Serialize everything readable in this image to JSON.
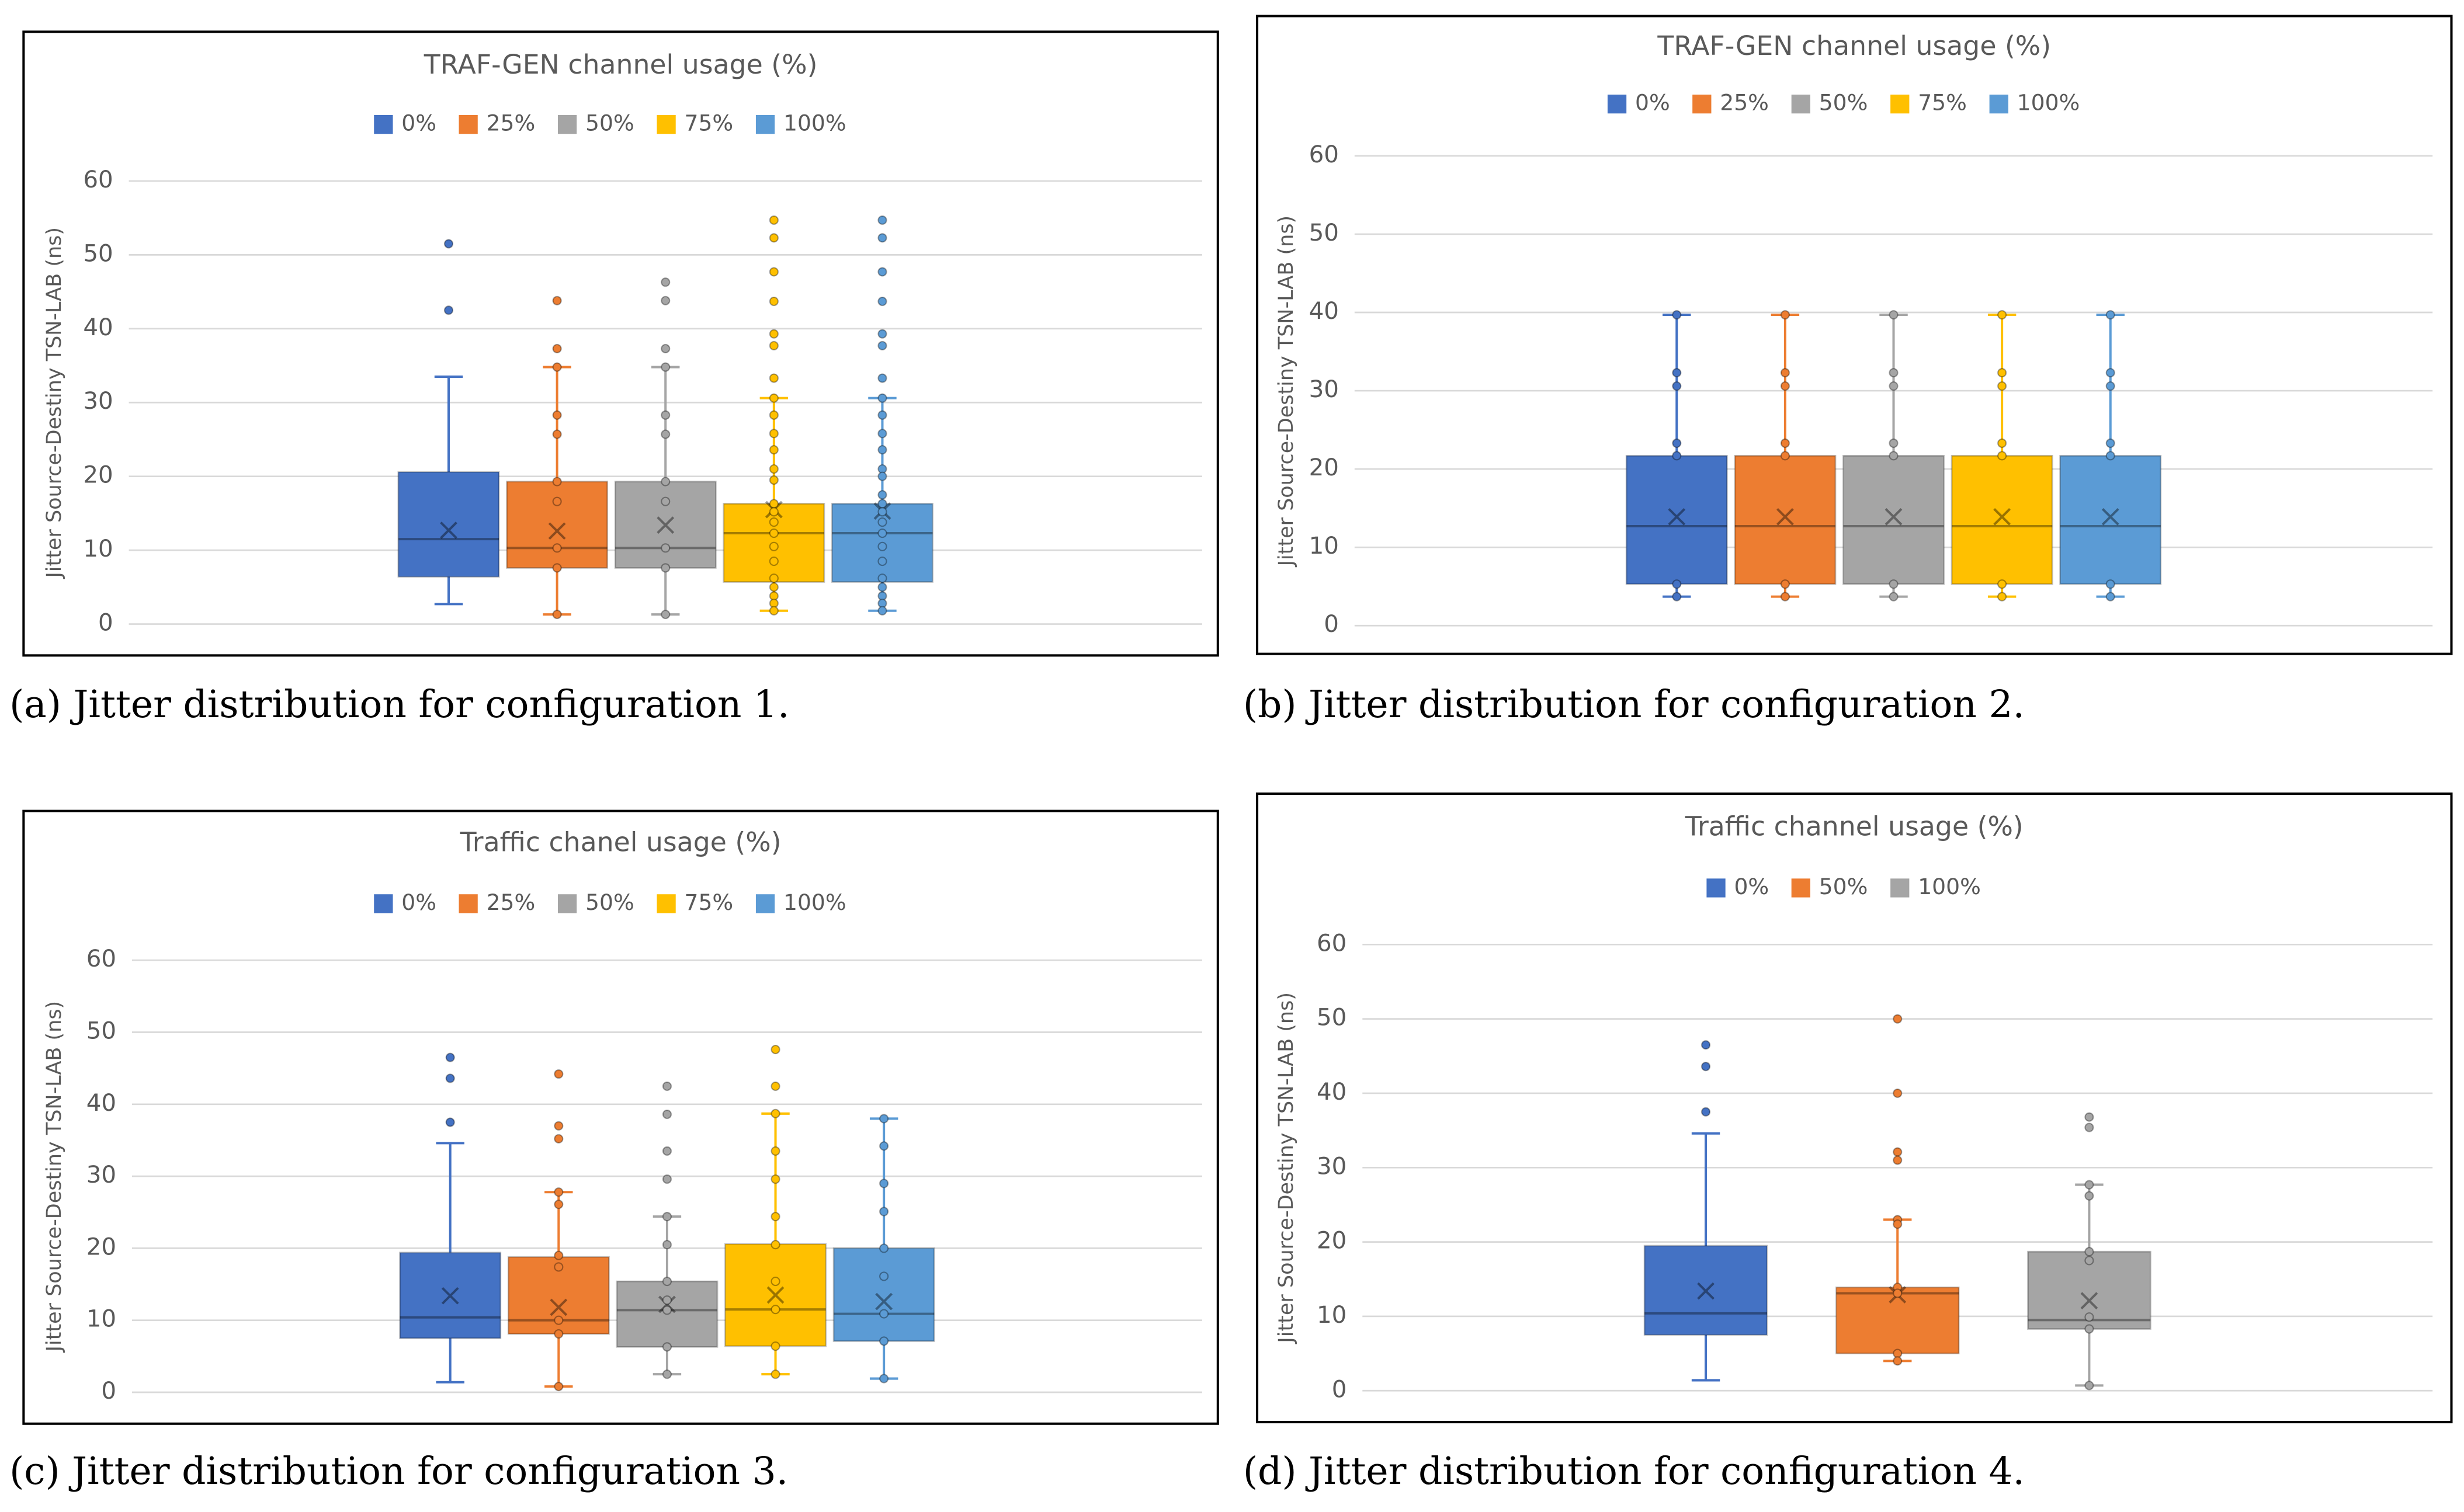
{
  "chart_data": [
    {
      "type": "box",
      "title": "TRAF-GEN channel usage (%)",
      "y_label": "Jitter Source-Destiny TSN-LAB (ns)",
      "caption": "(a) Jitter distribution for configuration 1.",
      "ylim": [
        0,
        60
      ],
      "yticks": [
        0,
        10,
        20,
        30,
        40,
        50,
        60
      ],
      "grid": true,
      "series": [
        {
          "name": "0%",
          "color": "#4472c4",
          "min": 2.7,
          "q1": 6.4,
          "median": 11.5,
          "q3": 20.6,
          "max": 33.5,
          "mean": 12.7,
          "points": [
            51.5,
            42.5
          ]
        },
        {
          "name": "25%",
          "color": "#ed7d31",
          "min": 1.3,
          "q1": 7.6,
          "median": 10.3,
          "q3": 19.3,
          "max": 34.8,
          "mean": 12.6,
          "points": [
            43.8,
            37.3,
            34.8,
            28.3,
            25.7,
            19.3,
            16.6,
            10.3,
            7.6,
            1.3
          ]
        },
        {
          "name": "50%",
          "color": "#a5a5a5",
          "min": 1.3,
          "q1": 7.6,
          "median": 10.3,
          "q3": 19.3,
          "max": 34.8,
          "mean": 13.4,
          "points": [
            46.3,
            43.8,
            37.3,
            34.8,
            28.3,
            25.7,
            19.3,
            16.6,
            10.3,
            7.6,
            1.3
          ]
        },
        {
          "name": "75%",
          "color": "#ffc000",
          "min": 1.8,
          "q1": 5.7,
          "median": 12.3,
          "q3": 16.3,
          "max": 30.6,
          "mean": 15.5,
          "points": [
            54.7,
            52.3,
            47.7,
            43.7,
            39.3,
            37.7,
            33.3,
            30.6,
            28.3,
            25.8,
            23.6,
            21.0,
            19.5,
            16.3,
            15.2,
            13.8,
            12.3,
            10.5,
            8.5,
            6.2,
            5.0,
            3.8,
            2.8,
            1.8
          ]
        },
        {
          "name": "100%",
          "color": "#5b9bd5",
          "min": 1.8,
          "q1": 5.7,
          "median": 12.3,
          "q3": 16.3,
          "max": 30.6,
          "mean": 15.3,
          "points": [
            54.7,
            52.3,
            47.7,
            43.7,
            39.3,
            37.7,
            33.3,
            30.6,
            28.3,
            25.8,
            23.6,
            21.0,
            20.0,
            17.5,
            16.3,
            15.2,
            13.8,
            12.3,
            10.5,
            8.5,
            6.2,
            5.0,
            3.8,
            2.8,
            1.8
          ]
        }
      ]
    },
    {
      "type": "box",
      "title": "TRAF-GEN channel usage (%)",
      "y_label": "Jitter Source-Destiny TSN-LAB (ns)",
      "caption": "(b) Jitter distribution for configuration 2.",
      "ylim": [
        0,
        60
      ],
      "yticks": [
        0,
        10,
        20,
        30,
        40,
        50,
        60
      ],
      "grid": true,
      "series": [
        {
          "name": "0%",
          "color": "#4472c4",
          "min": 3.7,
          "q1": 5.3,
          "median": 12.7,
          "q3": 21.7,
          "max": 39.7,
          "mean": 13.9,
          "points": [
            39.7,
            32.3,
            30.6,
            23.3,
            21.7,
            5.3,
            3.7
          ]
        },
        {
          "name": "25%",
          "color": "#ed7d31",
          "min": 3.7,
          "q1": 5.3,
          "median": 12.7,
          "q3": 21.7,
          "max": 39.7,
          "mean": 13.9,
          "points": [
            39.7,
            32.3,
            30.6,
            23.3,
            21.7,
            5.3,
            3.7
          ]
        },
        {
          "name": "50%",
          "color": "#a5a5a5",
          "min": 3.7,
          "q1": 5.3,
          "median": 12.7,
          "q3": 21.7,
          "max": 39.7,
          "mean": 13.9,
          "points": [
            39.7,
            32.3,
            30.6,
            23.3,
            21.7,
            5.3,
            3.7
          ]
        },
        {
          "name": "75%",
          "color": "#ffc000",
          "min": 3.7,
          "q1": 5.3,
          "median": 12.7,
          "q3": 21.7,
          "max": 39.7,
          "mean": 13.9,
          "points": [
            39.7,
            32.3,
            30.6,
            23.3,
            21.7,
            5.3,
            3.7
          ]
        },
        {
          "name": "100%",
          "color": "#5b9bd5",
          "min": 3.7,
          "q1": 5.3,
          "median": 12.7,
          "q3": 21.7,
          "max": 39.7,
          "mean": 13.9,
          "points": [
            39.7,
            32.3,
            30.6,
            23.3,
            21.7,
            5.3,
            3.7
          ]
        }
      ]
    },
    {
      "type": "box",
      "title": "Traffic chanel usage (%)",
      "y_label": "Jitter Source-Destiny TSN-LAB (ns)",
      "caption": "(c) Jitter distribution for configuration 3.",
      "ylim": [
        0,
        60
      ],
      "yticks": [
        0,
        10,
        20,
        30,
        40,
        50,
        60
      ],
      "grid": true,
      "series": [
        {
          "name": "0%",
          "color": "#4472c4",
          "min": 1.4,
          "q1": 7.5,
          "median": 10.4,
          "q3": 19.4,
          "max": 34.6,
          "mean": 13.4,
          "points": [
            46.5,
            43.6,
            37.5
          ]
        },
        {
          "name": "25%",
          "color": "#ed7d31",
          "min": 0.8,
          "q1": 8.1,
          "median": 10.0,
          "q3": 18.8,
          "max": 27.8,
          "mean": 11.8,
          "points": [
            44.2,
            37.0,
            35.2,
            27.8,
            26.1,
            19.0,
            17.4,
            10.0,
            8.1,
            0.8
          ]
        },
        {
          "name": "50%",
          "color": "#a5a5a5",
          "min": 2.5,
          "q1": 6.3,
          "median": 11.4,
          "q3": 15.4,
          "max": 24.4,
          "mean": 12.2,
          "points": [
            42.5,
            38.6,
            33.5,
            29.6,
            24.4,
            20.5,
            15.4,
            12.8,
            11.4,
            6.3,
            2.5
          ]
        },
        {
          "name": "75%",
          "color": "#ffc000",
          "min": 2.5,
          "q1": 6.4,
          "median": 11.5,
          "q3": 20.6,
          "max": 38.7,
          "mean": 13.5,
          "points": [
            47.6,
            42.5,
            38.7,
            33.5,
            29.6,
            24.4,
            20.5,
            15.4,
            11.5,
            6.4,
            2.5
          ]
        },
        {
          "name": "100%",
          "color": "#5b9bd5",
          "min": 1.9,
          "q1": 7.1,
          "median": 10.9,
          "q3": 20.0,
          "max": 38.0,
          "mean": 12.6,
          "points": [
            38.0,
            34.2,
            29.0,
            25.1,
            20.0,
            16.1,
            10.9,
            7.1,
            1.9
          ]
        }
      ]
    },
    {
      "type": "box",
      "title": "Traffic channel usage (%)",
      "y_label": "Jitter Source-Destiny TSN-LAB (ns)",
      "caption": "(d) Jitter distribution for configuration 4.",
      "ylim": [
        0,
        60
      ],
      "yticks": [
        0,
        10,
        20,
        30,
        40,
        50,
        60
      ],
      "grid": true,
      "series": [
        {
          "name": "0%",
          "color": "#4472c4",
          "min": 1.4,
          "q1": 7.5,
          "median": 10.4,
          "q3": 19.5,
          "max": 34.6,
          "mean": 13.4,
          "points": [
            46.5,
            43.6,
            37.5
          ]
        },
        {
          "name": "50%",
          "color": "#ed7d31",
          "min": 4.0,
          "q1": 5.0,
          "median": 13.1,
          "q3": 13.9,
          "max": 23.0,
          "mean": 12.9,
          "points": [
            50.0,
            40.0,
            32.1,
            31.0,
            23.0,
            22.4,
            13.9,
            13.1,
            5.0,
            4.0
          ]
        },
        {
          "name": "100%",
          "color": "#a5a5a5",
          "min": 0.7,
          "q1": 8.3,
          "median": 9.5,
          "q3": 18.7,
          "max": 27.7,
          "mean": 12.1,
          "points": [
            36.8,
            35.4,
            27.7,
            26.2,
            18.7,
            17.5,
            9.9,
            8.3,
            0.7
          ]
        }
      ]
    }
  ]
}
